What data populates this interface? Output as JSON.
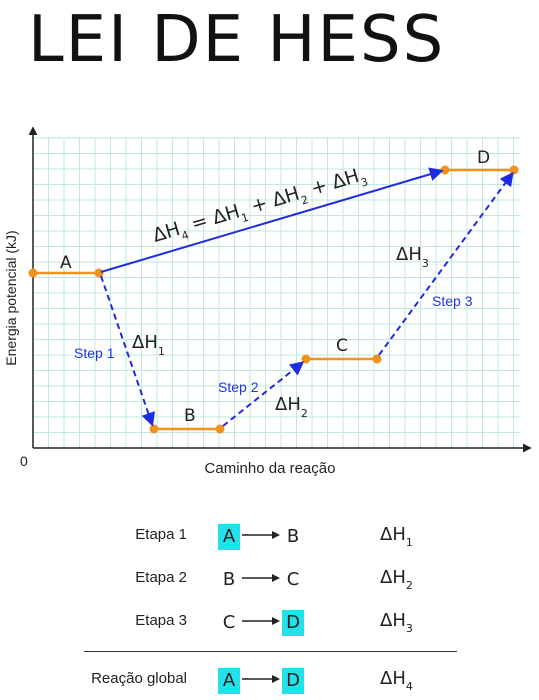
{
  "title": "LEI DE HESS",
  "diagram": {
    "ylabel": "Energia potencial (kJ)",
    "xlabel": "Caminho da reação",
    "origin": "0",
    "states": [
      {
        "name": "A"
      },
      {
        "name": "B"
      },
      {
        "name": "C"
      },
      {
        "name": "D"
      }
    ],
    "steps": [
      "Step 1",
      "Step 2",
      "Step 3"
    ],
    "enthalpies": {
      "dh1_sym": "ΔH",
      "dh1_sub": "1",
      "dh2_sym": "ΔH",
      "dh2_sub": "2",
      "dh3_sym": "ΔH",
      "dh3_sub": "3",
      "dh4_sym": "ΔH",
      "dh4_sub": "4",
      "equation_lhs_sym": "ΔH",
      "equation_lhs_sub": "4",
      "equation_rhs": [
        {
          "sym": "ΔH",
          "sub": "1"
        },
        {
          "sym": "ΔH",
          "sub": "2"
        },
        {
          "sym": "ΔH",
          "sub": "3"
        }
      ]
    },
    "colors": {
      "grid": "#bfe8e3",
      "state_line": "#f0921e",
      "arrow": "#1f2be0",
      "highlight": "#24e0e8"
    }
  },
  "table": {
    "rows": [
      {
        "name": "Etapa 1",
        "reactant": "A",
        "product": "B",
        "dh": "ΔH",
        "dh_sub": "1",
        "hl_reactant": true,
        "hl_product": false
      },
      {
        "name": "Etapa 2",
        "reactant": "B",
        "product": "C",
        "dh": "ΔH",
        "dh_sub": "2",
        "hl_reactant": false,
        "hl_product": false
      },
      {
        "name": "Etapa 3",
        "reactant": "C",
        "product": "D",
        "dh": "ΔH",
        "dh_sub": "3",
        "hl_reactant": false,
        "hl_product": true
      },
      {
        "name": "Reação global",
        "reactant": "A",
        "product": "D",
        "dh": "ΔH",
        "dh_sub": "4",
        "hl_reactant": true,
        "hl_product": true
      }
    ]
  }
}
